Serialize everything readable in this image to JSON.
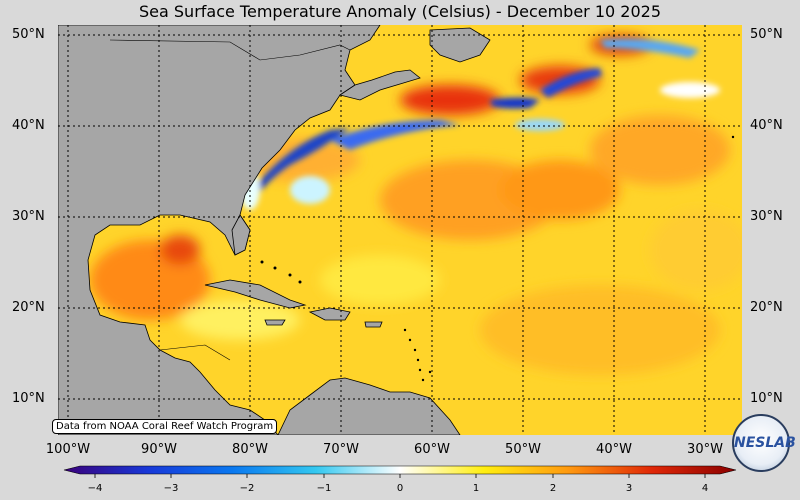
{
  "title": "Sea Surface Temperature Anomaly (Celsius) - December 10 2025",
  "credit": "Data from NOAA Coral Reef Watch Program",
  "logo_text": "NESLAB",
  "lat_labels": [
    "50°N",
    "40°N",
    "30°N",
    "20°N",
    "10°N"
  ],
  "lon_labels": [
    "100°W",
    "90°W",
    "80°W",
    "70°W",
    "60°W",
    "50°W",
    "40°W",
    "30°W"
  ],
  "colorbar": {
    "ticks": [
      "−4",
      "−3",
      "−2",
      "−1",
      "0",
      "1",
      "2",
      "3",
      "4"
    ],
    "min": -4,
    "max": 4,
    "stops": [
      "#3a007a",
      "#1838d8",
      "#0a78f0",
      "#34c8f0",
      "#ffffff",
      "#ffee10",
      "#ff9a10",
      "#e02808",
      "#8a0000"
    ]
  },
  "colors": {
    "land": "#a6a6a6",
    "ocean_base": "#ffd82a",
    "cold": "#1a3cc8",
    "hot": "#c81208"
  }
}
